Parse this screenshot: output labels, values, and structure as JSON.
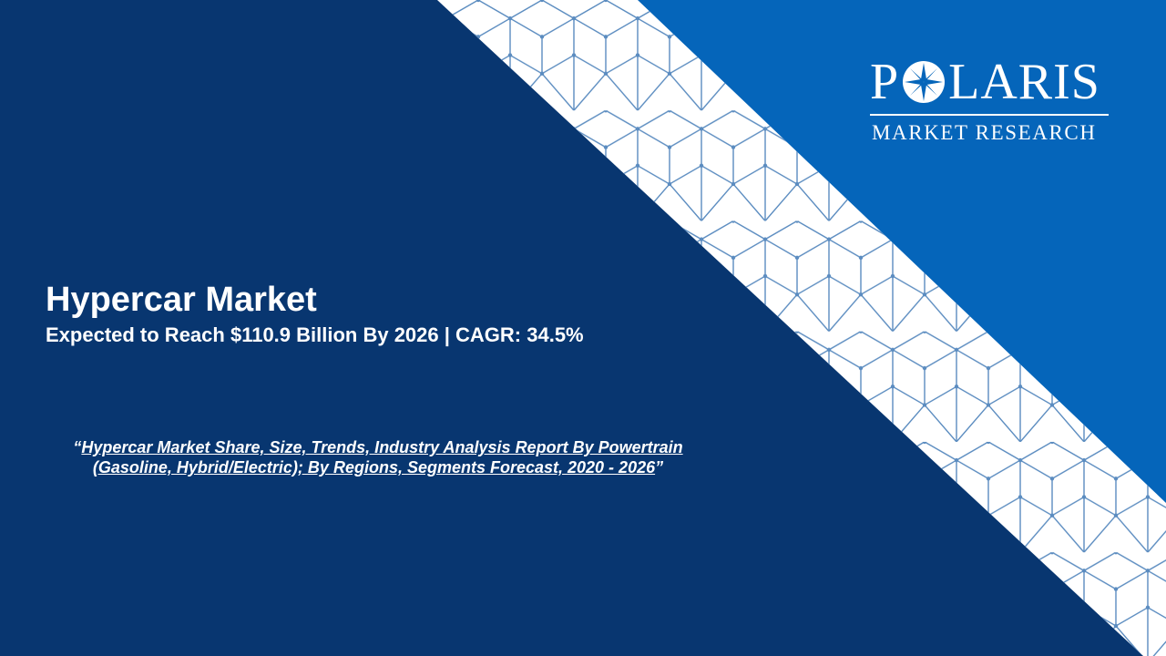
{
  "slide": {
    "colors": {
      "dark_blue": "#083670",
      "bright_blue": "#0565ba",
      "band_white": "#ffffff",
      "pattern_line": "#5b8cc0"
    },
    "title": "Hypercar Market",
    "subtitle": "Expected to Reach $110.9 Billion By 2026 | CAGR: 34.5%",
    "report": {
      "open_quote": "“",
      "link_text": "Hypercar Market Share, Size, Trends, Industry Analysis Report By Powertrain (Gasoline, Hybrid/Electric); By Regions, Segments Forecast, 2020 - 2026",
      "close_quote": "”"
    }
  },
  "logo": {
    "word_before": "P",
    "star_icon": "compass-star-icon",
    "word_after": "LARIS",
    "tagline": "MARKET RESEARCH"
  }
}
